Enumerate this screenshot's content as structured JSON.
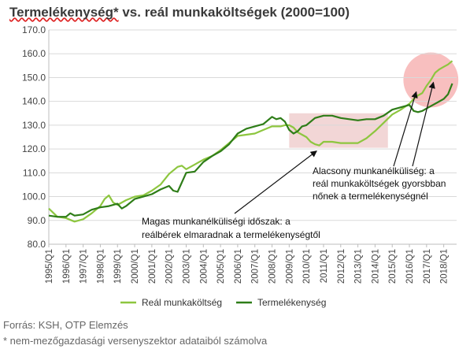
{
  "chart_data": {
    "type": "line",
    "title_main": "Termelékenység*",
    "title_rest": " vs. reál munkaköltségek (2000=100)",
    "ylim": [
      80,
      170
    ],
    "y_ticks": [
      "80.0",
      "90.0",
      "100.0",
      "110.0",
      "120.0",
      "130.0",
      "140.0",
      "150.0",
      "160.0",
      "170.0"
    ],
    "x_ticks": [
      "1995/Q1",
      "1996/Q1",
      "1997/Q1",
      "1998/Q1",
      "1999/Q1",
      "2000/Q1",
      "2001/Q1",
      "2002/Q1",
      "2003/Q1",
      "2004/Q1",
      "2005/Q1",
      "2006/Q1",
      "2007/Q1",
      "2008/Q1",
      "2009/Q1",
      "2010/Q1",
      "2011/Q1",
      "2012/Q1",
      "2013/Q1",
      "2014/Q1",
      "2015/Q1",
      "2016/Q1",
      "2017/Q1",
      "2018/Q1"
    ],
    "grid": true,
    "legend_position": "bottom",
    "series": [
      {
        "name": "Reál munkaköltség",
        "color": "#8dc63f",
        "points": [
          [
            1995.0,
            95.0
          ],
          [
            1995.5,
            91.5
          ],
          [
            1996.0,
            91.0
          ],
          [
            1996.5,
            89.5
          ],
          [
            1997.0,
            90.5
          ],
          [
            1997.5,
            93.0
          ],
          [
            1998.0,
            96.0
          ],
          [
            1998.25,
            99.0
          ],
          [
            1998.5,
            100.5
          ],
          [
            1998.75,
            97.5
          ],
          [
            1999.0,
            96.5
          ],
          [
            1999.5,
            98.5
          ],
          [
            2000.0,
            100.0
          ],
          [
            2000.5,
            100.5
          ],
          [
            2001.0,
            102.5
          ],
          [
            2001.5,
            105.0
          ],
          [
            2002.0,
            109.5
          ],
          [
            2002.5,
            112.5
          ],
          [
            2002.75,
            113.0
          ],
          [
            2003.0,
            111.5
          ],
          [
            2003.5,
            113.5
          ],
          [
            2004.0,
            115.5
          ],
          [
            2004.5,
            117.0
          ],
          [
            2005.0,
            119.5
          ],
          [
            2005.5,
            122.5
          ],
          [
            2006.0,
            125.5
          ],
          [
            2006.5,
            126.0
          ],
          [
            2007.0,
            126.5
          ],
          [
            2007.5,
            128.0
          ],
          [
            2008.0,
            129.5
          ],
          [
            2008.5,
            129.5
          ],
          [
            2008.75,
            130.0
          ],
          [
            2009.0,
            130.0
          ],
          [
            2009.25,
            129.0
          ],
          [
            2009.5,
            127.0
          ],
          [
            2009.75,
            126.0
          ],
          [
            2010.0,
            125.0
          ],
          [
            2010.25,
            123.0
          ],
          [
            2010.5,
            122.0
          ],
          [
            2010.75,
            121.5
          ],
          [
            2011.0,
            123.0
          ],
          [
            2011.5,
            123.0
          ],
          [
            2012.0,
            122.5
          ],
          [
            2012.5,
            122.5
          ],
          [
            2013.0,
            122.5
          ],
          [
            2013.5,
            124.5
          ],
          [
            2014.0,
            127.5
          ],
          [
            2014.5,
            131.0
          ],
          [
            2015.0,
            134.5
          ],
          [
            2015.5,
            136.5
          ],
          [
            2016.0,
            139.0
          ],
          [
            2016.25,
            141.0
          ],
          [
            2016.5,
            142.5
          ],
          [
            2016.75,
            143.5
          ],
          [
            2017.0,
            146.5
          ],
          [
            2017.25,
            149.0
          ],
          [
            2017.5,
            152.0
          ],
          [
            2017.75,
            153.5
          ],
          [
            2018.0,
            154.5
          ],
          [
            2018.25,
            155.5
          ],
          [
            2018.5,
            157.0
          ]
        ]
      },
      {
        "name": "Termelékenység",
        "color": "#2e7d18",
        "points": [
          [
            1995.0,
            92.0
          ],
          [
            1995.5,
            91.5
          ],
          [
            1996.0,
            91.5
          ],
          [
            1996.25,
            93.0
          ],
          [
            1996.5,
            92.0
          ],
          [
            1997.0,
            92.5
          ],
          [
            1997.5,
            94.5
          ],
          [
            1998.0,
            95.5
          ],
          [
            1998.5,
            96.0
          ],
          [
            1999.0,
            97.0
          ],
          [
            1999.25,
            95.0
          ],
          [
            1999.5,
            96.0
          ],
          [
            2000.0,
            99.0
          ],
          [
            2000.5,
            100.0
          ],
          [
            2001.0,
            101.0
          ],
          [
            2001.5,
            103.0
          ],
          [
            2002.0,
            104.5
          ],
          [
            2002.25,
            102.5
          ],
          [
            2002.5,
            102.0
          ],
          [
            2003.0,
            110.0
          ],
          [
            2003.5,
            110.5
          ],
          [
            2004.0,
            114.5
          ],
          [
            2004.5,
            117.0
          ],
          [
            2005.0,
            119.0
          ],
          [
            2005.5,
            122.0
          ],
          [
            2006.0,
            126.5
          ],
          [
            2006.5,
            128.5
          ],
          [
            2007.0,
            129.5
          ],
          [
            2007.5,
            130.5
          ],
          [
            2008.0,
            133.5
          ],
          [
            2008.25,
            132.5
          ],
          [
            2008.5,
            133.0
          ],
          [
            2008.75,
            131.5
          ],
          [
            2009.0,
            128.0
          ],
          [
            2009.25,
            126.5
          ],
          [
            2009.5,
            127.5
          ],
          [
            2009.75,
            129.5
          ],
          [
            2010.0,
            130.0
          ],
          [
            2010.5,
            133.0
          ],
          [
            2011.0,
            134.0
          ],
          [
            2011.5,
            134.0
          ],
          [
            2012.0,
            133.0
          ],
          [
            2012.5,
            132.5
          ],
          [
            2013.0,
            132.0
          ],
          [
            2013.5,
            132.5
          ],
          [
            2014.0,
            132.5
          ],
          [
            2014.5,
            134.0
          ],
          [
            2015.0,
            136.5
          ],
          [
            2015.5,
            137.5
          ],
          [
            2016.0,
            138.5
          ],
          [
            2016.25,
            136.0
          ],
          [
            2016.5,
            135.5
          ],
          [
            2016.75,
            136.0
          ],
          [
            2017.0,
            137.0
          ],
          [
            2017.5,
            139.0
          ],
          [
            2018.0,
            141.0
          ],
          [
            2018.25,
            143.0
          ],
          [
            2018.5,
            147.5
          ]
        ]
      }
    ],
    "highlights": [
      {
        "type": "rect",
        "color": "#e8b4b4",
        "x_range": [
          2009.0,
          2014.75
        ],
        "y_range": [
          120.5,
          135.0
        ]
      },
      {
        "type": "circle",
        "color": "#f28a8a",
        "center": [
          2017.25,
          149.0
        ],
        "radius_years": 1.6
      }
    ],
    "annotations": [
      {
        "name": "annotation-low-unemployment",
        "lines": [
          "Alacsony munkanélküliség: a",
          "reál munkaköltségek gyorsbban",
          "nőnek a termelékenységnél"
        ],
        "arrow_tip": [
          2016.4,
          144.0
        ],
        "arrow_tip_2": [
          2017.4,
          148.0
        ]
      },
      {
        "name": "annotation-high-unemployment",
        "lines": [
          "Magas munkanélküliségi időszak: a",
          "reálbérek elmaradnak a termelékenységtől"
        ],
        "arrow_tip": [
          2010.6,
          120.5
        ]
      }
    ]
  },
  "footer": {
    "source": "Forrás: KSH, OTP Elemzés",
    "note": "* nem-mezőgazdasági versenyszektor adataiból számolva"
  }
}
